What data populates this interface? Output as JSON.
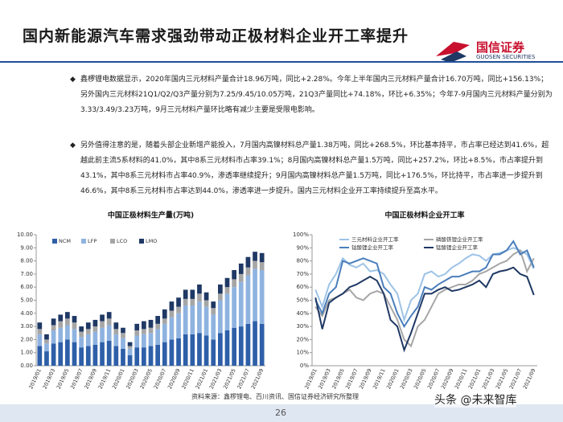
{
  "header": {
    "title": "国内新能源汽车需求强劲带动正极材料企业开工率提升",
    "logo_cn": "国信证券",
    "logo_en": "GUOSEN SECURITIES"
  },
  "bullets": [
    "鑫椤锂电数据显示，2020年国内三元材料产量合计18.96万吨，同比+2.28%。今年上半年国内三元材料产量合计16.70万吨，同比+156.13%；另外国内三元材料21Q1/Q2/Q3产量分别为7.25/9.45/10.05万吨，21Q3产量同比+74.18%，环比+6.35%；今年7-9月国内三元材料产量分别为3.33/3.49/3.23万吨，9月三元材料产量环比略有减少主要是受限电影响。",
    "另外值得注意的是，随着头部企业新增产能投入，7月国内高镍材料总产量1.38万吨，同比+268.5%，环比基本持平，市占率已经达到41.6%，超越此前主流5系材料的41.0%，其中8系三元材料市占率39.1%；8月国内高镍材料总产量1.5万吨，同比+257.2%，环比+8.5%，市占率提升到43.1%，其中8系三元材料市占率40.9%，渗透率继续提升；9月国内高镍材料总产量1.5万吨，同比+176.5%，环比持平，市占率进一步提升到46.6%，其中8系三元材料市占率达到44.0%，渗透率进一步提升。国内三元材料企业开工率持续提升至高水平。"
  ],
  "source": "资料来源：鑫椤锂电、百川资讯、国信证券经济研究所整理",
  "page_number": "26",
  "watermark": "头条 @未来智库",
  "chart_data": [
    {
      "type": "bar",
      "stacked": true,
      "title": "中国正极材料生产量(万吨)",
      "legend": "top-left",
      "categories": [
        "2019/01",
        null,
        "2019/03",
        null,
        "2019/05",
        null,
        "2019/07",
        null,
        "2019/09",
        null,
        "2019/11",
        null,
        "2020/01",
        null,
        "2020/03",
        null,
        "2020/05",
        null,
        "2020/07",
        null,
        "2020/09",
        null,
        "2020/11",
        null,
        "2021/01",
        null,
        "2021/03",
        null,
        "2021/05",
        null,
        "2021/07",
        null,
        "2021/09"
      ],
      "series": [
        {
          "name": "NCM",
          "color": "#2e5fa8",
          "values": [
            1.5,
            1.1,
            1.7,
            1.8,
            2.0,
            1.8,
            1.4,
            1.5,
            1.6,
            1.8,
            1.9,
            1.5,
            1.3,
            0.8,
            1.4,
            1.4,
            1.5,
            1.6,
            1.8,
            2.0,
            2.1,
            2.4,
            2.4,
            2.5,
            2.3,
            2.0,
            2.5,
            2.7,
            2.9,
            3.0,
            3.2,
            3.4,
            3.2
          ]
        },
        {
          "name": "LFP",
          "color": "#8fb3e0",
          "values": [
            0.9,
            0.6,
            1.0,
            1.1,
            1.1,
            1.0,
            0.8,
            0.9,
            1.0,
            1.1,
            1.2,
            0.9,
            0.8,
            0.5,
            0.9,
            1.0,
            1.0,
            1.2,
            1.4,
            1.7,
            1.9,
            2.2,
            2.2,
            2.4,
            2.2,
            1.9,
            2.5,
            2.8,
            3.1,
            3.4,
            3.7,
            4.0,
            4.1
          ]
        },
        {
          "name": "LCO",
          "color": "#a6a6a6",
          "values": [
            0.4,
            0.3,
            0.4,
            0.5,
            0.5,
            0.5,
            0.4,
            0.4,
            0.4,
            0.5,
            0.5,
            0.4,
            0.4,
            0.2,
            0.4,
            0.4,
            0.4,
            0.4,
            0.4,
            0.5,
            0.5,
            0.5,
            0.5,
            0.6,
            0.5,
            0.5,
            0.5,
            0.5,
            0.6,
            0.6,
            0.6,
            0.6,
            0.6
          ]
        },
        {
          "name": "LMO",
          "color": "#1f3864",
          "values": [
            0.5,
            0.4,
            0.5,
            0.5,
            0.5,
            0.5,
            0.4,
            0.5,
            0.5,
            0.5,
            0.5,
            0.5,
            0.4,
            0.3,
            0.5,
            0.6,
            0.6,
            0.6,
            0.7,
            0.7,
            0.7,
            0.7,
            0.7,
            0.7,
            0.6,
            0.5,
            0.7,
            0.7,
            0.7,
            0.8,
            0.8,
            0.7,
            0.7
          ]
        }
      ],
      "ylim": [
        0,
        10
      ],
      "yticks": [
        {
          "value": 0,
          "label": "0.00"
        },
        {
          "value": 1,
          "label": "1.00"
        },
        {
          "value": 2,
          "label": "2.00"
        },
        {
          "value": 3,
          "label": "3.00"
        },
        {
          "value": 4,
          "label": "4.00"
        },
        {
          "value": 5,
          "label": "5.00"
        },
        {
          "value": 6,
          "label": "6.00"
        },
        {
          "value": 7,
          "label": "7.00"
        },
        {
          "value": 8,
          "label": "8.00"
        },
        {
          "value": 9,
          "label": "9.00"
        },
        {
          "value": 10,
          "label": "10.00"
        }
      ],
      "grid": false
    },
    {
      "type": "line",
      "title": "中国正极材料企业开工率",
      "legend": "top",
      "categories": [
        "2019/01",
        null,
        "2019/03",
        null,
        "2019/05",
        null,
        "2019/07",
        null,
        "2019/09",
        null,
        "2019/11",
        null,
        "2020/01",
        null,
        "2020/03",
        null,
        "2020/05",
        null,
        "2020/07",
        null,
        "2020/09",
        null,
        "2020/11",
        null,
        "2021/01",
        null,
        "2021/03",
        null,
        "2021/05",
        null,
        "2021/07",
        null,
        "2021/09"
      ],
      "series": [
        {
          "name": "三元材料企业开工率",
          "color": "#9dc3e6",
          "values": [
            58,
            45,
            62,
            70,
            82,
            77,
            75,
            78,
            72,
            73,
            70,
            62,
            55,
            35,
            50,
            55,
            70,
            72,
            68,
            70,
            75,
            78,
            82,
            85,
            84,
            80,
            85,
            86,
            88,
            90,
            88,
            85,
            74
          ]
        },
        {
          "name": "磷酸铁锂企业开工率",
          "color": "#a6a6a6",
          "values": [
            45,
            38,
            50,
            52,
            55,
            58,
            52,
            50,
            55,
            57,
            55,
            45,
            35,
            20,
            15,
            30,
            35,
            45,
            55,
            58,
            60,
            62,
            62,
            65,
            70,
            72,
            75,
            78,
            80,
            85,
            88,
            72,
            82
          ]
        },
        {
          "name": "钴酸锂企业开工率",
          "color": "#4a7ebb",
          "values": [
            50,
            40,
            55,
            60,
            80,
            78,
            80,
            82,
            80,
            78,
            60,
            55,
            40,
            30,
            38,
            45,
            60,
            58,
            62,
            65,
            68,
            68,
            70,
            72,
            72,
            75,
            85,
            85,
            88,
            95,
            85,
            88,
            75
          ]
        },
        {
          "name": "锰酸锂企业开工率",
          "color": "#1f3864",
          "values": [
            52,
            28,
            48,
            52,
            55,
            60,
            62,
            65,
            68,
            65,
            55,
            35,
            30,
            12,
            25,
            40,
            55,
            55,
            58,
            60,
            57,
            58,
            60,
            62,
            65,
            60,
            70,
            72,
            73,
            75,
            70,
            68,
            54
          ]
        }
      ],
      "ylim": [
        0,
        100
      ],
      "yticks": [
        {
          "value": 0,
          "label": "0%"
        },
        {
          "value": 10,
          "label": "10%"
        },
        {
          "value": 20,
          "label": "20%"
        },
        {
          "value": 30,
          "label": "30%"
        },
        {
          "value": 40,
          "label": "40%"
        },
        {
          "value": 50,
          "label": "50%"
        },
        {
          "value": 60,
          "label": "60%"
        },
        {
          "value": 70,
          "label": "70%"
        },
        {
          "value": 80,
          "label": "80%"
        },
        {
          "value": 90,
          "label": "90%"
        },
        {
          "value": 100,
          "label": "100%"
        }
      ],
      "grid": false
    }
  ]
}
